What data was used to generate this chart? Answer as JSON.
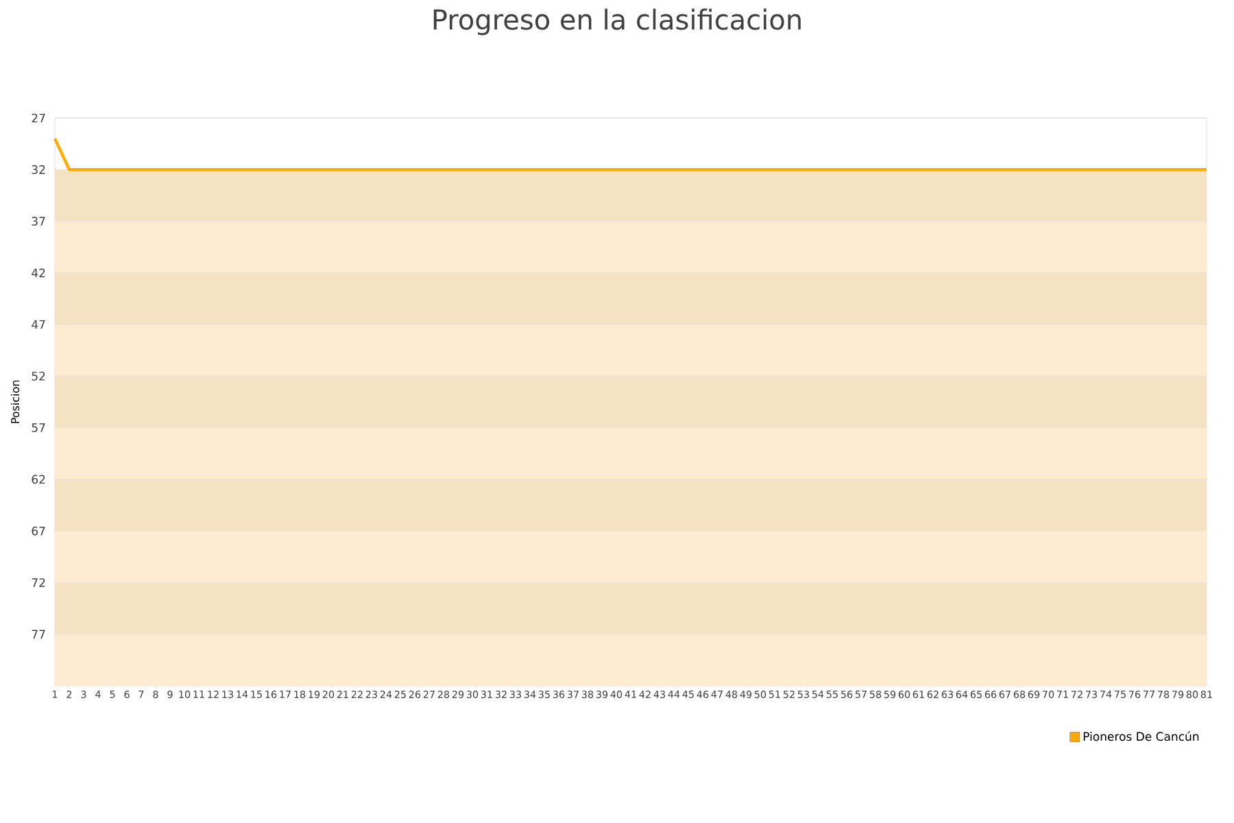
{
  "chart_data": {
    "type": "line",
    "title": "Progreso en la clasificacion",
    "ylabel": "Posicion",
    "categories": [
      "1",
      "2",
      "3",
      "4",
      "5",
      "6",
      "7",
      "8",
      "9",
      "10",
      "11",
      "12",
      "13",
      "14",
      "15",
      "16",
      "17",
      "18",
      "19",
      "20",
      "21",
      "22",
      "23",
      "24",
      "25",
      "26",
      "27",
      "28",
      "29",
      "30",
      "31",
      "32",
      "33",
      "34",
      "35",
      "36",
      "37",
      "38",
      "39",
      "40",
      "41",
      "42",
      "43",
      "44",
      "45",
      "46",
      "47",
      "48",
      "49",
      "50",
      "51",
      "52",
      "53",
      "54",
      "55",
      "56",
      "57",
      "58",
      "59",
      "60",
      "61",
      "62",
      "63",
      "64",
      "65",
      "66",
      "67",
      "68",
      "69",
      "70",
      "71",
      "72",
      "73",
      "74",
      "75",
      "76",
      "77",
      "78",
      "79",
      "80",
      "81"
    ],
    "series": [
      {
        "name": "Pioneros De Cancún",
        "color": "#ffaa00",
        "values": [
          29,
          32,
          32,
          32,
          32,
          32,
          32,
          32,
          32,
          32,
          32,
          32,
          32,
          32,
          32,
          32,
          32,
          32,
          32,
          32,
          32,
          32,
          32,
          32,
          32,
          32,
          32,
          32,
          32,
          32,
          32,
          32,
          32,
          32,
          32,
          32,
          32,
          32,
          32,
          32,
          32,
          32,
          32,
          32,
          32,
          32,
          32,
          32,
          32,
          32,
          32,
          32,
          32,
          32,
          32,
          32,
          32,
          32,
          32,
          32,
          32,
          32,
          32,
          32,
          32,
          32,
          32,
          32,
          32,
          32,
          32,
          32,
          32,
          32,
          32,
          32,
          32,
          32,
          32,
          32,
          32
        ]
      }
    ],
    "ylim": [
      82,
      27
    ],
    "yticks": [
      27,
      32,
      37,
      42,
      47,
      52,
      57,
      62,
      67,
      72,
      77
    ],
    "bands": [
      {
        "axis": "y",
        "from": 32,
        "to": 37,
        "color": "#f6e3c3"
      },
      {
        "axis": "y",
        "from": 37,
        "to": 42,
        "color": "#ffecd0"
      },
      {
        "axis": "y",
        "from": 42,
        "to": 47,
        "color": "#f6e3c3"
      },
      {
        "axis": "y",
        "from": 47,
        "to": 52,
        "color": "#ffecd0"
      },
      {
        "axis": "y",
        "from": 52,
        "to": 57,
        "color": "#f6e3c3"
      },
      {
        "axis": "y",
        "from": 57,
        "to": 62,
        "color": "#ffecd0"
      },
      {
        "axis": "y",
        "from": 62,
        "to": 67,
        "color": "#f6e3c3"
      },
      {
        "axis": "y",
        "from": 67,
        "to": 72,
        "color": "#ffecd0"
      },
      {
        "axis": "y",
        "from": 72,
        "to": 77,
        "color": "#f6e3c3"
      },
      {
        "axis": "y",
        "from": 77,
        "to": 82,
        "color": "#ffecd0"
      }
    ],
    "grid": "y",
    "legend": "bottom right",
    "marker": "none",
    "line_style": "solid"
  }
}
